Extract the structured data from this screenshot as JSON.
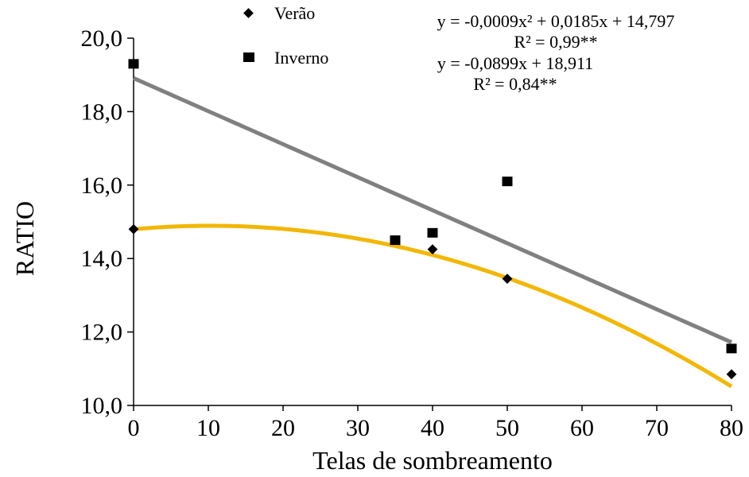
{
  "chart_data": {
    "type": "scatter",
    "title": "",
    "xlabel": "Telas de sombreamento",
    "ylabel": "RATIO",
    "xlim": [
      0,
      80
    ],
    "ylim": [
      10,
      20
    ],
    "x_ticks": [
      "0",
      "10",
      "20",
      "30",
      "40",
      "50",
      "60",
      "70",
      "80"
    ],
    "y_ticks": [
      "10,0",
      "12,0",
      "14,0",
      "16,0",
      "18,0",
      "20,0"
    ],
    "grid": false,
    "legend_position": "top-center",
    "series": [
      {
        "name": "Verão",
        "marker": "diamond",
        "points": [
          {
            "x": 0,
            "y": 14.8
          },
          {
            "x": 40,
            "y": 14.25
          },
          {
            "x": 50,
            "y": 13.45
          },
          {
            "x": 80,
            "y": 10.85
          }
        ],
        "fit": {
          "kind": "quadratic",
          "coefficients": {
            "a": -0.0009,
            "b": 0.0185,
            "c": 14.797
          },
          "color": "#f2b705",
          "equation": "y = -0,0009x² + 0,0185x + 14,797",
          "r2_label": "R² = 0,99**"
        }
      },
      {
        "name": "Inverno",
        "marker": "square",
        "points": [
          {
            "x": 0,
            "y": 19.3
          },
          {
            "x": 35,
            "y": 14.5
          },
          {
            "x": 40,
            "y": 14.7
          },
          {
            "x": 50,
            "y": 16.1
          },
          {
            "x": 80,
            "y": 11.55
          }
        ],
        "fit": {
          "kind": "linear",
          "coefficients": {
            "a": -0.0899,
            "b": 18.911
          },
          "color": "#808080",
          "equation": "y = -0,0899x + 18,911",
          "r2_label": "R² = 0,84**"
        }
      }
    ]
  }
}
